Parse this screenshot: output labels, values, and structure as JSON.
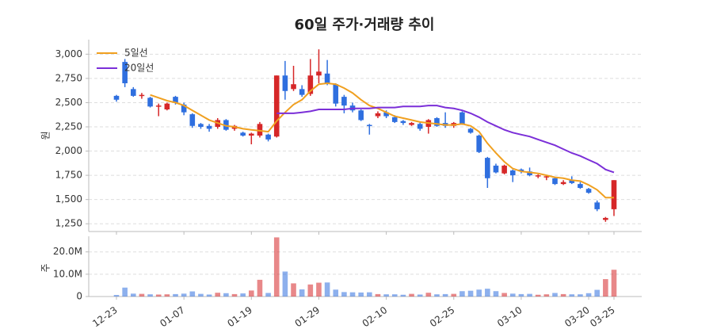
{
  "chart_data": {
    "type": "candlestick",
    "title": "60일 주가·거래량 추이",
    "ylabel": "원",
    "categories": [
      "12-23",
      null,
      null,
      null,
      null,
      null,
      null,
      null,
      "01-07",
      null,
      null,
      null,
      null,
      null,
      null,
      null,
      "01-19",
      null,
      null,
      null,
      null,
      null,
      null,
      null,
      "01-29",
      null,
      null,
      null,
      null,
      null,
      null,
      null,
      "02-10",
      null,
      null,
      null,
      null,
      null,
      null,
      null,
      "02-25",
      null,
      null,
      null,
      null,
      null,
      null,
      null,
      "03-10",
      null,
      null,
      null,
      null,
      null,
      null,
      null,
      "03-20",
      null,
      null,
      "03-25"
    ],
    "open": [
      2570,
      2920,
      2640,
      2570,
      2550,
      2460,
      2430,
      2560,
      2480,
      2380,
      2280,
      2260,
      2250,
      2320,
      2230,
      2190,
      2160,
      2160,
      2170,
      2150,
      2780,
      2640,
      2640,
      2590,
      2780,
      2800,
      2690,
      2560,
      2470,
      2420,
      2270,
      2360,
      2400,
      2350,
      2310,
      2270,
      2280,
      2250,
      2340,
      2290,
      2260,
      2400,
      2230,
      2160,
      1930,
      1850,
      1770,
      1800,
      1810,
      1790,
      1740,
      1730,
      1720,
      1660,
      1700,
      1660,
      1610,
      1470,
      1290,
      1400
    ],
    "high": [
      2580,
      2950,
      2660,
      2600,
      2560,
      2490,
      2500,
      2570,
      2500,
      2390,
      2290,
      2280,
      2340,
      2330,
      2270,
      2200,
      2190,
      2300,
      2180,
      2780,
      2930,
      2880,
      2680,
      2950,
      3050,
      2940,
      2700,
      2580,
      2500,
      2430,
      2280,
      2410,
      2420,
      2370,
      2320,
      2300,
      2300,
      2330,
      2350,
      2400,
      2300,
      2410,
      2240,
      2170,
      1940,
      1870,
      1860,
      1810,
      1820,
      1830,
      1760,
      1750,
      1730,
      1700,
      1740,
      1680,
      1620,
      1490,
      1320,
      1700
    ],
    "low": [
      2510,
      2660,
      2560,
      2540,
      2450,
      2360,
      2420,
      2480,
      2370,
      2240,
      2230,
      2200,
      2230,
      2210,
      2210,
      2150,
      2070,
      2140,
      2100,
      2140,
      2530,
      2620,
      2560,
      2570,
      2700,
      2680,
      2460,
      2390,
      2400,
      2310,
      2170,
      2340,
      2340,
      2290,
      2270,
      2260,
      2210,
      2180,
      2250,
      2240,
      2240,
      2270,
      2180,
      1980,
      1620,
      1770,
      1760,
      1680,
      1770,
      1740,
      1720,
      1700,
      1650,
      1650,
      1660,
      1610,
      1560,
      1380,
      1270,
      1330
    ],
    "close": [
      2530,
      2700,
      2570,
      2580,
      2460,
      2470,
      2490,
      2500,
      2400,
      2260,
      2250,
      2230,
      2320,
      2220,
      2260,
      2160,
      2180,
      2280,
      2120,
      2780,
      2620,
      2690,
      2580,
      2780,
      2820,
      2700,
      2490,
      2470,
      2420,
      2320,
      2260,
      2390,
      2360,
      2300,
      2290,
      2290,
      2230,
      2320,
      2260,
      2260,
      2290,
      2280,
      2190,
      1990,
      1720,
      1780,
      1850,
      1750,
      1790,
      1750,
      1750,
      1740,
      1660,
      1680,
      1670,
      1620,
      1570,
      1400,
      1310,
      1700
    ],
    "up_color": "#d62728",
    "down_color": "#2f6fdf",
    "series": [
      {
        "name": "5일선",
        "color": "#f0a020",
        "values": [
          null,
          null,
          null,
          null,
          2580,
          2550,
          2520,
          2500,
          2470,
          2420,
          2370,
          2320,
          2290,
          2260,
          2250,
          2230,
          2220,
          2210,
          2200,
          2310,
          2400,
          2480,
          2530,
          2620,
          2690,
          2700,
          2690,
          2650,
          2600,
          2530,
          2470,
          2440,
          2400,
          2360,
          2340,
          2320,
          2300,
          2290,
          2280,
          2270,
          2270,
          2280,
          2260,
          2200,
          2080,
          1980,
          1890,
          1820,
          1790,
          1780,
          1770,
          1750,
          1730,
          1720,
          1700,
          1690,
          1650,
          1600,
          1520,
          1520
        ]
      },
      {
        "name": "20일선",
        "color": "#7b2fd8",
        "values": [
          null,
          null,
          null,
          null,
          null,
          null,
          null,
          null,
          null,
          null,
          null,
          null,
          null,
          null,
          null,
          null,
          null,
          null,
          null,
          2390,
          2390,
          2390,
          2400,
          2410,
          2430,
          2430,
          2430,
          2430,
          2440,
          2440,
          2440,
          2450,
          2450,
          2450,
          2460,
          2460,
          2460,
          2470,
          2470,
          2450,
          2440,
          2420,
          2390,
          2350,
          2300,
          2260,
          2220,
          2190,
          2170,
          2150,
          2120,
          2090,
          2060,
          2020,
          1980,
          1950,
          1910,
          1870,
          1810,
          1780
        ]
      }
    ],
    "legend": "upper left",
    "grid": true,
    "ylim": [
      1170,
      3150
    ],
    "yticks": [
      {
        "value": 1250,
        "label": "1,250"
      },
      {
        "value": 1500,
        "label": "1,500"
      },
      {
        "value": 1750,
        "label": "1,750"
      },
      {
        "value": 2000,
        "label": "2,000"
      },
      {
        "value": 2250,
        "label": "2,250"
      },
      {
        "value": 2500,
        "label": "2,500"
      },
      {
        "value": 2750,
        "label": "2,750"
      },
      {
        "value": 3000,
        "label": "3,000"
      }
    ],
    "volume": {
      "ylabel": "주",
      "ylim": [
        0,
        27000000
      ],
      "yticks": [
        0,
        {
          "value": 10000000,
          "label": "10.0M"
        },
        {
          "value": 20000000,
          "label": "20.0M"
        }
      ],
      "values": [
        700000,
        4000000,
        1300000,
        1200000,
        1000000,
        900000,
        1000000,
        1100000,
        1300000,
        2300000,
        1200000,
        900000,
        1700000,
        1500000,
        1100000,
        1400000,
        2700000,
        7500000,
        1600000,
        26500000,
        11200000,
        5900000,
        3200000,
        5400000,
        6200000,
        6300000,
        3100000,
        2000000,
        1900000,
        1800000,
        1900000,
        1100000,
        1000000,
        1000000,
        800000,
        1200000,
        900000,
        1700000,
        1000000,
        1100000,
        1200000,
        2400000,
        2600000,
        3100000,
        3500000,
        2400000,
        1600000,
        1300000,
        1100000,
        1200000,
        800000,
        1000000,
        1600000,
        1100000,
        1000000,
        1000000,
        1500000,
        3000000,
        7800000,
        12000000
      ]
    }
  }
}
